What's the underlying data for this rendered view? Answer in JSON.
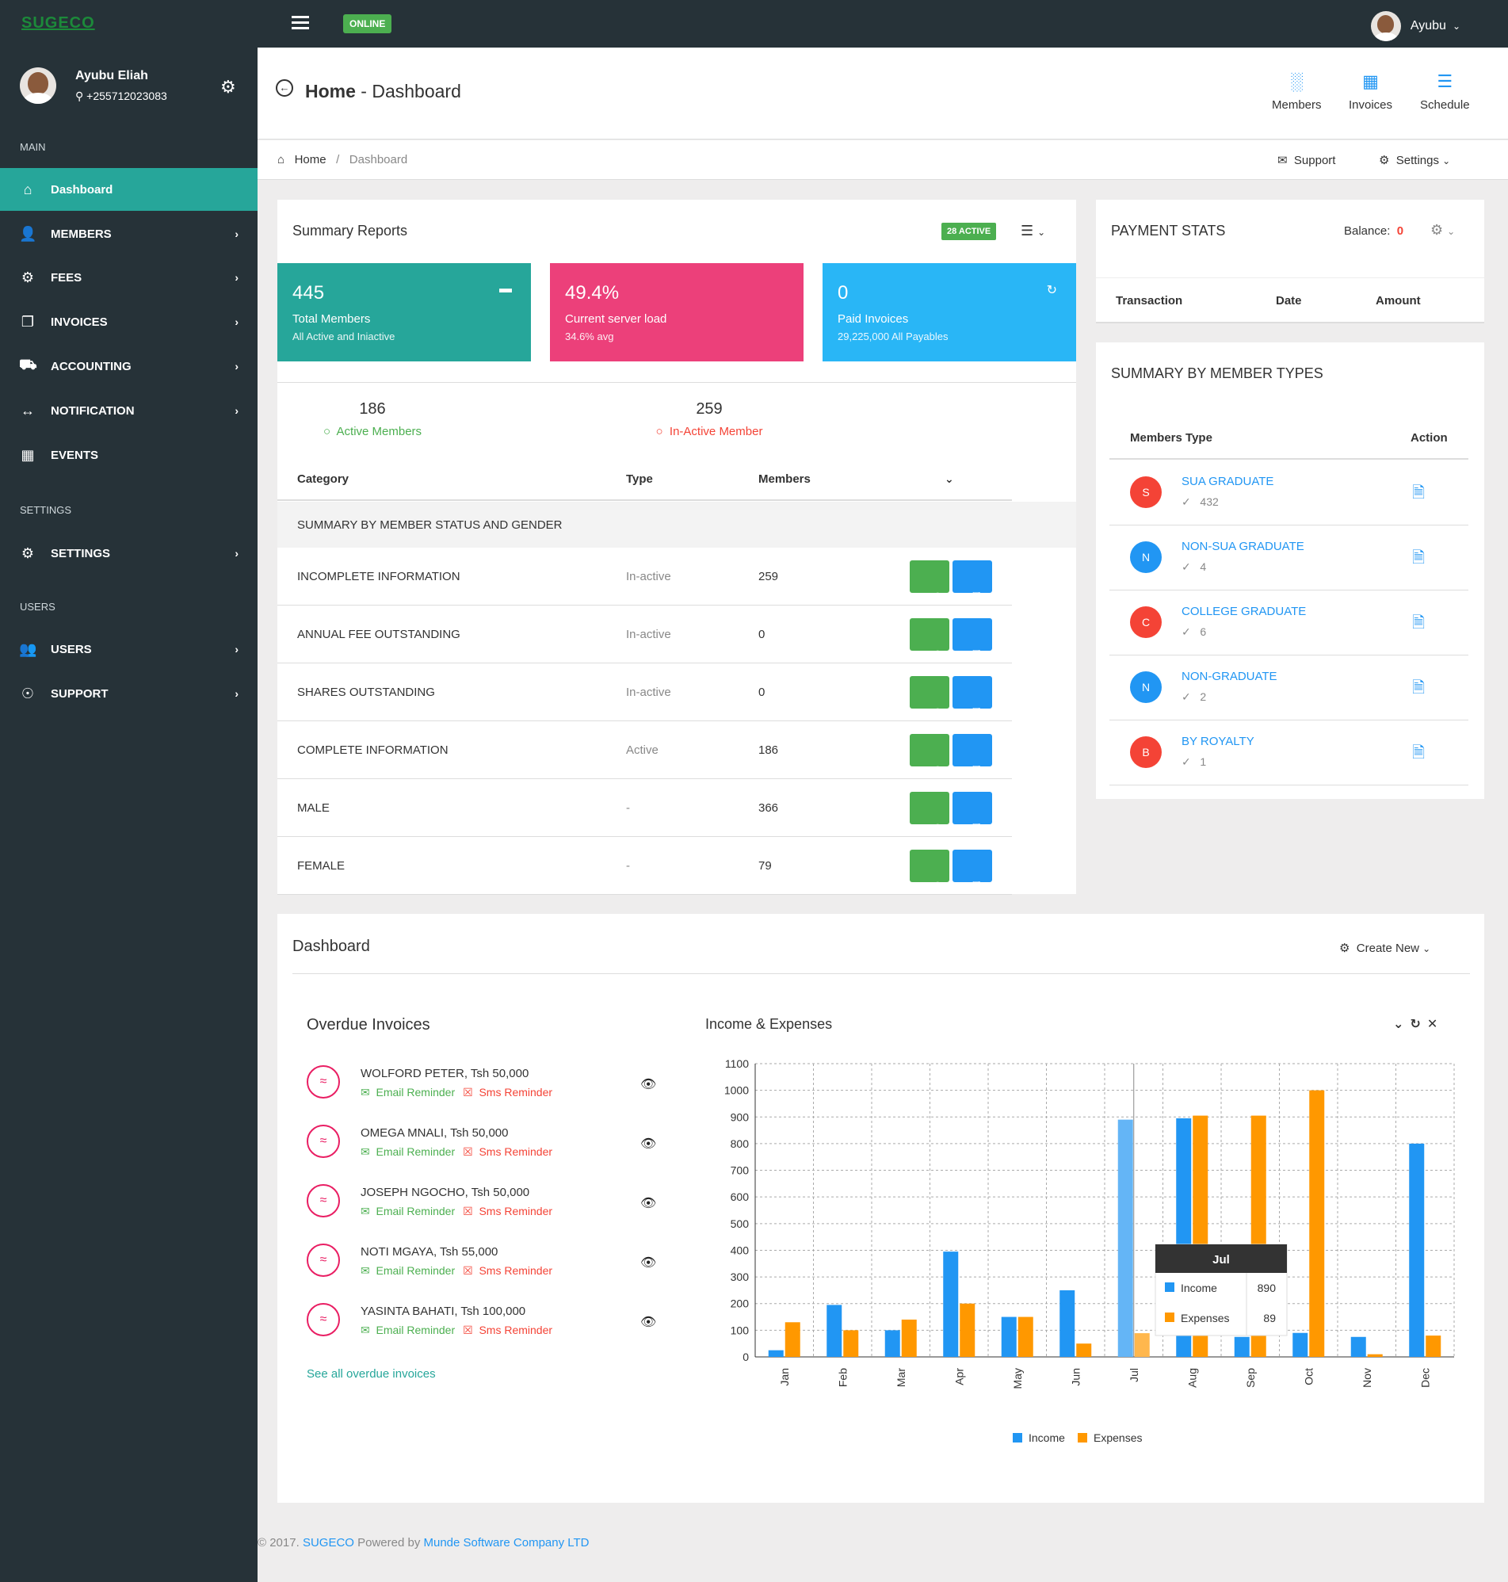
{
  "topbar": {
    "logo": "SUGECO",
    "status_badge": "ONLINE",
    "user_name": "Ayubu"
  },
  "sidebar": {
    "profile": {
      "name": "Ayubu Eliah",
      "phone": "+255712023083"
    },
    "sections": {
      "main": "MAIN",
      "settings": "SETTINGS",
      "users": "USERS"
    },
    "items": [
      {
        "label": "Dashboard",
        "icon": "home-icon"
      },
      {
        "label": "MEMBERS",
        "icon": "user-plus-icon"
      },
      {
        "label": "FEES",
        "icon": "cog-icon"
      },
      {
        "label": "INVOICES",
        "icon": "copy-icon"
      },
      {
        "label": "ACCOUNTING",
        "icon": "coins-icon"
      },
      {
        "label": "NOTIFICATION",
        "icon": "code-arrows-icon"
      },
      {
        "label": "EVENTS",
        "icon": "calendar-icon"
      },
      {
        "label": "SETTINGS",
        "icon": "cog-icon"
      },
      {
        "label": "USERS",
        "icon": "users-icon"
      },
      {
        "label": "SUPPORT",
        "icon": "lifebuoy-icon"
      }
    ]
  },
  "header": {
    "title_bold": "Home",
    "title_rest": " - Dashboard",
    "buttons": {
      "members": "Members",
      "invoices": "Invoices",
      "schedule": "Schedule"
    }
  },
  "breadcrumb": {
    "home": "Home",
    "sep": "/",
    "current": "Dashboard",
    "support": "Support",
    "settings": "Settings"
  },
  "summary": {
    "title": "Summary Reports",
    "active_badge": "28 ACTIVE",
    "stats": [
      {
        "value": "445",
        "label": "Total Members",
        "sub": "All Active and Iniactive",
        "color": "#26a69a"
      },
      {
        "value": "49.4%",
        "label": "Current server load",
        "sub": "34.6% avg",
        "color": "#ec407a"
      },
      {
        "value": "0",
        "label": "Paid Invoices",
        "sub": "29,225,000 All Payables",
        "color": "#29b6f6"
      }
    ],
    "active_members": {
      "count": "186",
      "label": "Active Members"
    },
    "inactive_members": {
      "count": "259",
      "label": "In-Active Member"
    },
    "table": {
      "headers": {
        "category": "Category",
        "type": "Type",
        "members": "Members"
      },
      "group_title": "SUMMARY BY MEMBER STATUS AND GENDER",
      "rows": [
        {
          "category": "INCOMPLETE INFORMATION",
          "type": "In-active",
          "members": "259"
        },
        {
          "category": "ANNUAL FEE OUTSTANDING",
          "type": "In-active",
          "members": "0"
        },
        {
          "category": "SHARES OUTSTANDING",
          "type": "In-active",
          "members": "0"
        },
        {
          "category": "COMPLETE INFORMATION",
          "type": "Active",
          "members": "186"
        },
        {
          "category": "MALE",
          "type": "-",
          "members": "366"
        },
        {
          "category": "FEMALE",
          "type": "-",
          "members": "79"
        }
      ]
    }
  },
  "payment_stats": {
    "title": "PAYMENT STATS",
    "balance_label": "Balance:",
    "balance_value": "0",
    "headers": {
      "transaction": "Transaction",
      "date": "Date",
      "amount": "Amount"
    }
  },
  "member_types": {
    "title": "SUMMARY BY MEMBER TYPES",
    "headers": {
      "type": "Members Type",
      "action": "Action"
    },
    "rows": [
      {
        "initial": "S",
        "name": "SUA GRADUATE",
        "count": "432",
        "color": "#f44336"
      },
      {
        "initial": "N",
        "name": "NON-SUA GRADUATE",
        "count": "4",
        "color": "#2196f3"
      },
      {
        "initial": "C",
        "name": "COLLEGE GRADUATE",
        "count": "6",
        "color": "#f44336"
      },
      {
        "initial": "N",
        "name": "NON-GRADUATE",
        "count": "2",
        "color": "#2196f3"
      },
      {
        "initial": "B",
        "name": "BY ROYALTY",
        "count": "1",
        "color": "#f44336"
      }
    ]
  },
  "dashboard": {
    "title": "Dashboard",
    "create_new": "Create New",
    "overdue": {
      "title": "Overdue Invoices",
      "email_label": "Email Reminder",
      "sms_label": "Sms Reminder",
      "items": [
        {
          "name": "WOLFORD PETER, Tsh 50,000"
        },
        {
          "name": "OMEGA MNALI, Tsh 50,000"
        },
        {
          "name": "JOSEPH NGOCHO, Tsh 50,000"
        },
        {
          "name": "NOTI MGAYA, Tsh 55,000"
        },
        {
          "name": "YASINTA BAHATI, Tsh 100,000"
        }
      ],
      "see_all": "See all overdue invoices"
    }
  },
  "chart_data": {
    "type": "bar",
    "title": "Income & Expenses",
    "categories": [
      "Jan",
      "Feb",
      "Mar",
      "Apr",
      "May",
      "Jun",
      "Jul",
      "Aug",
      "Sep",
      "Oct",
      "Nov",
      "Dec"
    ],
    "series": [
      {
        "name": "Income",
        "color": "#2196f3",
        "values": [
          25,
          195,
          100,
          395,
          150,
          250,
          890,
          895,
          75,
          90,
          75,
          800
        ]
      },
      {
        "name": "Expenses",
        "color": "#ff9800",
        "values": [
          130,
          100,
          140,
          200,
          150,
          50,
          89,
          905,
          905,
          1000,
          10,
          80
        ]
      }
    ],
    "ylim": [
      0,
      1100
    ],
    "yticks": [
      0,
      100,
      200,
      300,
      400,
      500,
      600,
      700,
      800,
      900,
      1000,
      1100
    ],
    "grid": true,
    "legend_position": "bottom",
    "tooltip": {
      "category": "Jul",
      "income_label": "Income",
      "income_value": "890",
      "expenses_label": "Expenses",
      "expenses_value": "89"
    }
  },
  "footer": {
    "prefix": "© 2017. ",
    "brand": "SUGECO",
    "powered": " Powered by ",
    "company": "Munde Software Company LTD"
  }
}
